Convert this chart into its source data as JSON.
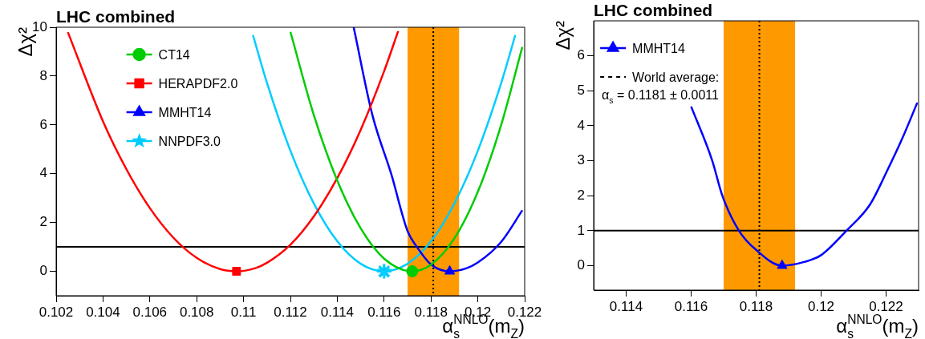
{
  "chart_data": [
    {
      "type": "line",
      "title": "LHC combined",
      "xlabel": "α$_{s}$$^{NNLO}$(m$_{Z}$)",
      "ylabel": "Δχ²",
      "xlim": [
        0.102,
        0.122
      ],
      "xticks": [
        0.102,
        0.104,
        0.106,
        0.108,
        0.11,
        0.112,
        0.114,
        0.116,
        0.118,
        0.12,
        0.122
      ],
      "ylim": [
        -1,
        10
      ],
      "yticks": [
        0,
        2,
        4,
        6,
        8,
        10
      ],
      "grid": false,
      "legend": "top left",
      "series": [
        {
          "name": "CT14",
          "color": "#00cc00",
          "x": [
            0.112,
            0.113,
            0.114,
            0.115,
            0.116,
            0.1172,
            0.118,
            0.119,
            0.12,
            0.121,
            0.1219
          ],
          "values": [
            9.81,
            6.4,
            3.72,
            1.76,
            0.52,
            0,
            0.27,
            1.35,
            3.26,
            6.01,
            9.19
          ]
        },
        {
          "name": "HERAPDF2.0",
          "color": "#ff0000",
          "x": [
            0.1025,
            0.104,
            0.105,
            0.106,
            0.107,
            0.108,
            0.109,
            0.1097,
            0.1105,
            0.111,
            0.112,
            0.113,
            0.114,
            0.115,
            0.116,
            0.1166
          ],
          "values": [
            9.8,
            6.14,
            4.18,
            2.59,
            1.38,
            0.55,
            0.09,
            0,
            0.13,
            0.35,
            1.09,
            2.25,
            3.82,
            5.8,
            8.2,
            9.84
          ]
        },
        {
          "name": "MMHT14",
          "color": "#0000ff",
          "x": [
            0.1147,
            0.1155,
            0.1163,
            0.117,
            0.1174,
            0.118,
            0.1188,
            0.1195,
            0.12,
            0.121,
            0.1219
          ],
          "values": [
            10,
            6.4,
            4,
            1.65,
            1,
            0.28,
            0,
            0.12,
            0.36,
            1.21,
            2.5
          ]
        },
        {
          "name": "NNPDF3.0",
          "color": "#00ccff",
          "x": [
            0.1104,
            0.111,
            0.112,
            0.113,
            0.114,
            0.115,
            0.116,
            0.117,
            0.118,
            0.119,
            0.12,
            0.121,
            0.1216
          ],
          "values": [
            9.68,
            7.72,
            4.94,
            2.78,
            1.23,
            0.31,
            0,
            0.31,
            1.23,
            2.78,
            4.94,
            7.72,
            9.68
          ]
        },
        {
          "type": "scatter",
          "color": "#00cc00",
          "marker": "circle",
          "x": [
            0.1172
          ],
          "values": [
            0
          ]
        },
        {
          "type": "scatter",
          "color": "#ff0000",
          "marker": "square",
          "x": [
            0.1097
          ],
          "values": [
            0
          ]
        },
        {
          "type": "scatter",
          "color": "#0000ff",
          "marker": "triangle",
          "x": [
            0.1188
          ],
          "values": [
            0
          ]
        },
        {
          "type": "scatter",
          "color": "#00ccff",
          "marker": "star",
          "x": [
            0.116
          ],
          "values": [
            0
          ]
        }
      ],
      "ref_lines": [
        {
          "axis": "y",
          "value": 1,
          "color": "#000000",
          "line_style": "solid"
        },
        {
          "axis": "x",
          "value": 0.1181,
          "color": "#000000",
          "line_style": "dotted"
        }
      ],
      "bands": [
        {
          "axis": "x",
          "from": 0.117,
          "to": 0.1192,
          "color": "#ff9900"
        }
      ]
    },
    {
      "type": "line",
      "title": "LHC combined",
      "xlabel": "α$_{s}$$^{NNLO}$(m$_{Z}$)",
      "ylabel": "Δχ²",
      "xlim": [
        0.113,
        0.123
      ],
      "xticks": [
        0.114,
        0.116,
        0.118,
        0.12,
        0.122
      ],
      "ylim": [
        -0.7,
        7
      ],
      "yticks": [
        0,
        1,
        2,
        3,
        4,
        5,
        6
      ],
      "grid": false,
      "legend": "top left",
      "series": [
        {
          "name": "MMHT14",
          "color": "#0000ff",
          "x": [
            0.116,
            0.11665,
            0.11696,
            0.11747,
            0.118,
            0.1188,
            0.1195,
            0.12,
            0.12078,
            0.1215,
            0.122,
            0.1225,
            0.12296
          ],
          "values": [
            4.55,
            3,
            2,
            1,
            0.45,
            0,
            0.11,
            0.3,
            1,
            1.74,
            2.65,
            3.64,
            4.66
          ]
        },
        {
          "type": "scatter",
          "color": "#0000ff",
          "marker": "triangle",
          "x": [
            0.1188
          ],
          "values": [
            0
          ]
        }
      ],
      "ref_lines": [
        {
          "axis": "y",
          "value": 1,
          "color": "#000000",
          "line_style": "solid"
        },
        {
          "axis": "x",
          "value": 0.1181,
          "label": "World average:",
          "color": "#000000",
          "line_style": "dotted"
        }
      ],
      "bands": [
        {
          "axis": "x",
          "from": 0.117,
          "to": 0.1192,
          "color": "#ff9900"
        }
      ],
      "annotations": [
        "α$_{s}$ = 0.1181 ± 0.0011"
      ]
    }
  ]
}
